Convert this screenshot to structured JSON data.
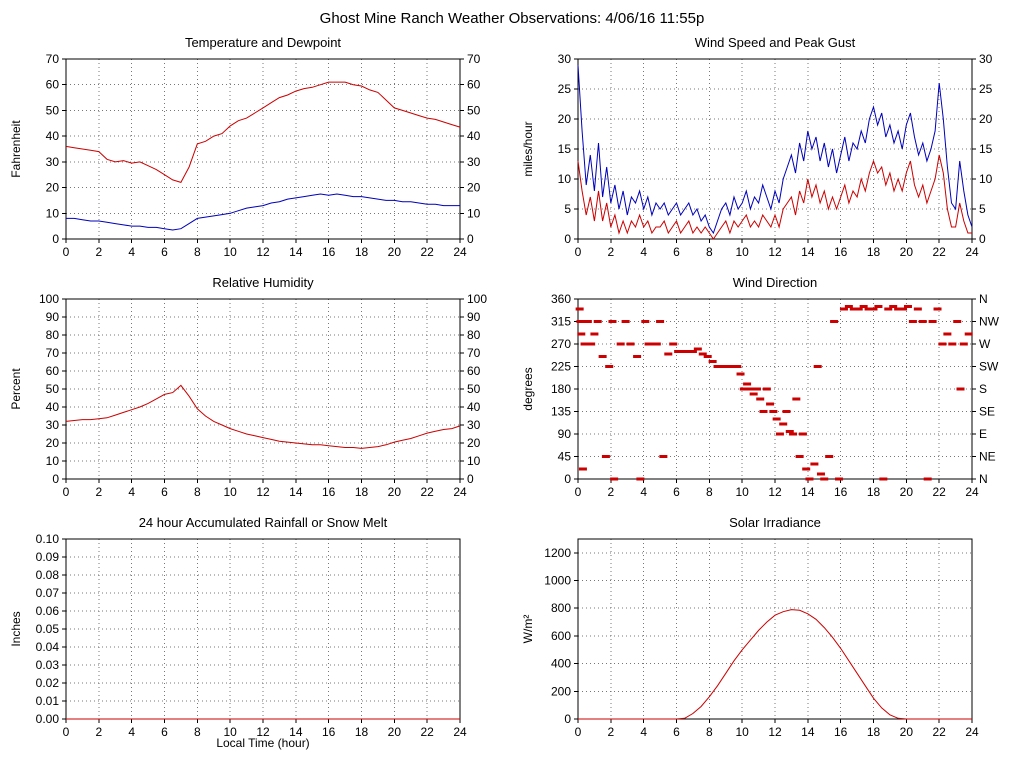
{
  "page_title": "Ghost Mine Ranch Weather Observations: 4/06/16 11:55p",
  "xlabel": "Local Time (hour)",
  "colors": {
    "red": "#cc0000",
    "blue": "#0000bb",
    "grid": "#777777",
    "axis": "#000000"
  },
  "chart_data": [
    {
      "id": "temperature-dewpoint",
      "type": "line",
      "title": "Temperature and Dewpoint",
      "ylabel": "Fahrenheit",
      "xlim": [
        0,
        24
      ],
      "xtick_step": 2,
      "ylim": [
        0,
        70
      ],
      "yticks": [
        0,
        10,
        20,
        30,
        40,
        50,
        60,
        70
      ],
      "right_axis": "mirror",
      "show_xlabel": false,
      "series": [
        {
          "name": "temperature",
          "color": "red",
          "type": "line",
          "x_start": 0,
          "x_step": 0.5,
          "y": [
            36,
            35.5,
            35,
            34.5,
            34,
            31,
            30,
            30.5,
            29.5,
            30,
            28.5,
            27,
            25,
            23,
            22,
            28,
            37,
            38,
            40,
            41,
            44,
            46,
            47,
            49,
            51,
            53,
            55,
            56,
            57.5,
            58.5,
            59,
            60,
            61,
            61,
            61,
            60,
            59.5,
            58,
            57,
            54,
            51,
            50,
            49,
            48,
            47,
            46.5,
            45.5,
            44.5,
            43.5
          ]
        },
        {
          "name": "dewpoint",
          "color": "blue",
          "type": "line",
          "x_start": 0,
          "x_step": 0.5,
          "y": [
            8,
            8,
            7.5,
            7,
            7,
            6.5,
            6,
            5.5,
            5,
            5,
            4.5,
            4.5,
            4,
            3.5,
            4,
            6,
            8,
            8.5,
            9,
            9.5,
            10,
            11,
            12,
            12.5,
            13,
            14,
            14.5,
            15.5,
            16,
            16.5,
            17,
            17.5,
            17,
            17.5,
            17,
            16.5,
            16.5,
            16,
            15.5,
            15,
            15,
            14.5,
            14.5,
            14,
            13.5,
            13.5,
            13,
            13,
            13
          ]
        }
      ]
    },
    {
      "id": "wind-speed-gust",
      "type": "line",
      "title": "Wind Speed and Peak Gust",
      "ylabel": "miles/hour",
      "xlim": [
        0,
        24
      ],
      "xtick_step": 2,
      "ylim": [
        0,
        30
      ],
      "yticks": [
        0,
        5,
        10,
        15,
        20,
        25,
        30
      ],
      "right_axis": "mirror",
      "show_xlabel": false,
      "series": [
        {
          "name": "peak-gust",
          "color": "blue",
          "type": "line",
          "x_start": 0,
          "x_step": 0.25,
          "y": [
            29,
            18,
            9,
            14,
            8,
            16,
            7,
            12,
            6,
            9,
            5,
            8,
            4,
            7,
            6,
            8,
            5,
            7,
            4,
            6,
            5,
            6,
            4,
            5,
            6,
            4,
            5,
            6,
            4,
            5,
            3,
            4,
            2,
            1,
            3,
            5,
            6,
            4,
            7,
            5,
            6,
            8,
            5,
            7,
            6,
            9,
            7,
            5,
            8,
            6,
            10,
            12,
            14,
            11,
            16,
            13,
            18,
            15,
            17,
            13,
            16,
            12,
            15,
            11,
            14,
            17,
            13,
            16,
            15,
            18,
            16,
            20,
            22,
            19,
            21,
            17,
            19,
            16,
            18,
            15,
            19,
            21,
            17,
            14,
            16,
            13,
            15,
            18,
            26,
            20,
            12,
            6,
            5,
            13,
            8,
            4,
            2
          ]
        },
        {
          "name": "wind-speed",
          "color": "red",
          "type": "line",
          "x_start": 0,
          "x_step": 0.25,
          "y": [
            13,
            8,
            4,
            7,
            3,
            8,
            3,
            6,
            2,
            4,
            1,
            3,
            1,
            3,
            2,
            4,
            2,
            3,
            1,
            2,
            2,
            3,
            1,
            2,
            3,
            1,
            2,
            3,
            1,
            2,
            1,
            2,
            1,
            0,
            1,
            2,
            3,
            1,
            3,
            2,
            3,
            4,
            2,
            3,
            2,
            4,
            3,
            2,
            4,
            2,
            5,
            6,
            7,
            4,
            8,
            6,
            10,
            7,
            9,
            6,
            8,
            5,
            7,
            5,
            7,
            9,
            6,
            8,
            7,
            10,
            8,
            11,
            13,
            11,
            12,
            9,
            11,
            8,
            10,
            8,
            11,
            13,
            9,
            7,
            9,
            6,
            8,
            10,
            14,
            11,
            5,
            2,
            2,
            6,
            3,
            1,
            1
          ]
        }
      ]
    },
    {
      "id": "relative-humidity",
      "type": "line",
      "title": "Relative Humidity",
      "ylabel": "Percent",
      "xlim": [
        0,
        24
      ],
      "xtick_step": 2,
      "ylim": [
        0,
        100
      ],
      "yticks": [
        0,
        10,
        20,
        30,
        40,
        50,
        60,
        70,
        80,
        90,
        100
      ],
      "right_axis": "mirror",
      "show_xlabel": false,
      "series": [
        {
          "name": "humidity",
          "color": "red",
          "type": "line",
          "x_start": 0,
          "x_step": 0.5,
          "y": [
            32,
            32.5,
            33,
            33,
            33.5,
            34,
            35.5,
            37,
            38.5,
            40,
            42,
            44.5,
            47,
            48,
            52,
            46,
            39,
            35,
            32,
            30,
            28,
            26.5,
            25,
            24,
            23,
            22,
            21,
            20.5,
            20,
            19.5,
            19,
            19,
            18.5,
            18,
            17.5,
            17.5,
            17,
            17.5,
            18,
            19,
            20.5,
            21.5,
            22.5,
            24,
            25.5,
            26.5,
            27.5,
            28,
            29.5
          ]
        }
      ]
    },
    {
      "id": "wind-direction",
      "type": "scatter",
      "title": "Wind Direction",
      "ylabel": "degrees",
      "xlim": [
        0,
        24
      ],
      "xtick_step": 2,
      "ylim": [
        0,
        360
      ],
      "yticks": [
        0,
        45,
        90,
        135,
        180,
        225,
        270,
        315,
        360
      ],
      "right_axis": "compass",
      "right_labels": [
        "N",
        "NE",
        "E",
        "SE",
        "S",
        "SW",
        "W",
        "NW",
        "N"
      ],
      "show_xlabel": false,
      "series": [
        {
          "name": "wind-direction",
          "color": "red",
          "type": "scatter",
          "x": [
            0.1,
            0.15,
            0.2,
            0.3,
            0.4,
            0.6,
            0.8,
            1.0,
            1.2,
            1.5,
            1.7,
            1.9,
            2.1,
            2.2,
            2.6,
            2.9,
            3.2,
            3.6,
            3.8,
            4.1,
            4.3,
            4.6,
            4.8,
            5.0,
            5.2,
            5.5,
            5.8,
            6.1,
            6.4,
            6.7,
            7.0,
            7.3,
            7.6,
            7.9,
            8.2,
            8.5,
            8.8,
            9.1,
            9.4,
            9.7,
            9.9,
            10.1,
            10.3,
            10.5,
            10.7,
            10.9,
            11.1,
            11.3,
            11.5,
            11.7,
            11.9,
            12.1,
            12.3,
            12.5,
            12.7,
            12.9,
            13.1,
            13.3,
            13.5,
            13.7,
            13.9,
            14.1,
            14.4,
            14.6,
            14.8,
            15.0,
            15.3,
            15.6,
            15.9,
            16.2,
            16.5,
            16.8,
            17.1,
            17.4,
            17.7,
            18.0,
            18.3,
            18.6,
            18.9,
            19.2,
            19.5,
            19.8,
            20.1,
            20.4,
            20.7,
            21.0,
            21.3,
            21.6,
            21.9,
            22.2,
            22.5,
            22.8,
            23.1,
            23.3,
            23.5,
            23.8
          ],
          "y": [
            340,
            315,
            290,
            20,
            270,
            315,
            270,
            290,
            315,
            245,
            45,
            225,
            315,
            0,
            270,
            315,
            270,
            245,
            0,
            315,
            270,
            270,
            270,
            315,
            45,
            250,
            270,
            255,
            255,
            255,
            255,
            260,
            250,
            245,
            235,
            225,
            225,
            225,
            225,
            225,
            210,
            180,
            190,
            180,
            170,
            180,
            160,
            135,
            180,
            150,
            135,
            120,
            90,
            110,
            135,
            95,
            90,
            160,
            45,
            90,
            20,
            0,
            30,
            225,
            10,
            0,
            45,
            315,
            0,
            340,
            345,
            340,
            340,
            345,
            340,
            340,
            345,
            0,
            340,
            345,
            340,
            340,
            345,
            315,
            340,
            315,
            0,
            315,
            340,
            270,
            290,
            270,
            315,
            180,
            270,
            290
          ]
        }
      ]
    },
    {
      "id": "rainfall",
      "type": "line",
      "title": "24 hour Accumulated Rainfall or Snow Melt",
      "ylabel": "Inches",
      "xlim": [
        0,
        24
      ],
      "xtick_step": 2,
      "ylim": [
        0,
        0.1
      ],
      "yticks": [
        0,
        0.01,
        0.02,
        0.03,
        0.04,
        0.05,
        0.06,
        0.07,
        0.08,
        0.09,
        0.1
      ],
      "ytick_labels": [
        "0.00",
        "0.01",
        "0.02",
        "0.03",
        "0.04",
        "0.05",
        "0.06",
        "0.07",
        "0.08",
        "0.09",
        "0.10"
      ],
      "right_axis": null,
      "show_xlabel": true,
      "series": [
        {
          "name": "rainfall",
          "color": "red",
          "type": "line",
          "x": [
            0,
            24
          ],
          "y": [
            0,
            0
          ]
        }
      ]
    },
    {
      "id": "solar-irradiance",
      "type": "line",
      "title": "Solar Irradiance",
      "ylabel": "W/m²",
      "xlim": [
        0,
        24
      ],
      "xtick_step": 2,
      "ylim": [
        0,
        1300
      ],
      "yticks": [
        0,
        200,
        400,
        600,
        800,
        1000,
        1200
      ],
      "right_axis": null,
      "show_xlabel": false,
      "series": [
        {
          "name": "solar",
          "color": "red",
          "type": "line",
          "x_start": 0,
          "x_step": 0.5,
          "y": [
            0,
            0,
            0,
            0,
            0,
            0,
            0,
            0,
            0,
            0,
            0,
            0,
            0,
            5,
            40,
            90,
            160,
            240,
            330,
            420,
            500,
            570,
            640,
            700,
            750,
            775,
            790,
            785,
            760,
            720,
            660,
            590,
            510,
            420,
            330,
            240,
            150,
            80,
            30,
            5,
            0,
            0,
            0,
            0,
            0,
            0,
            0,
            0,
            0
          ]
        }
      ]
    }
  ]
}
